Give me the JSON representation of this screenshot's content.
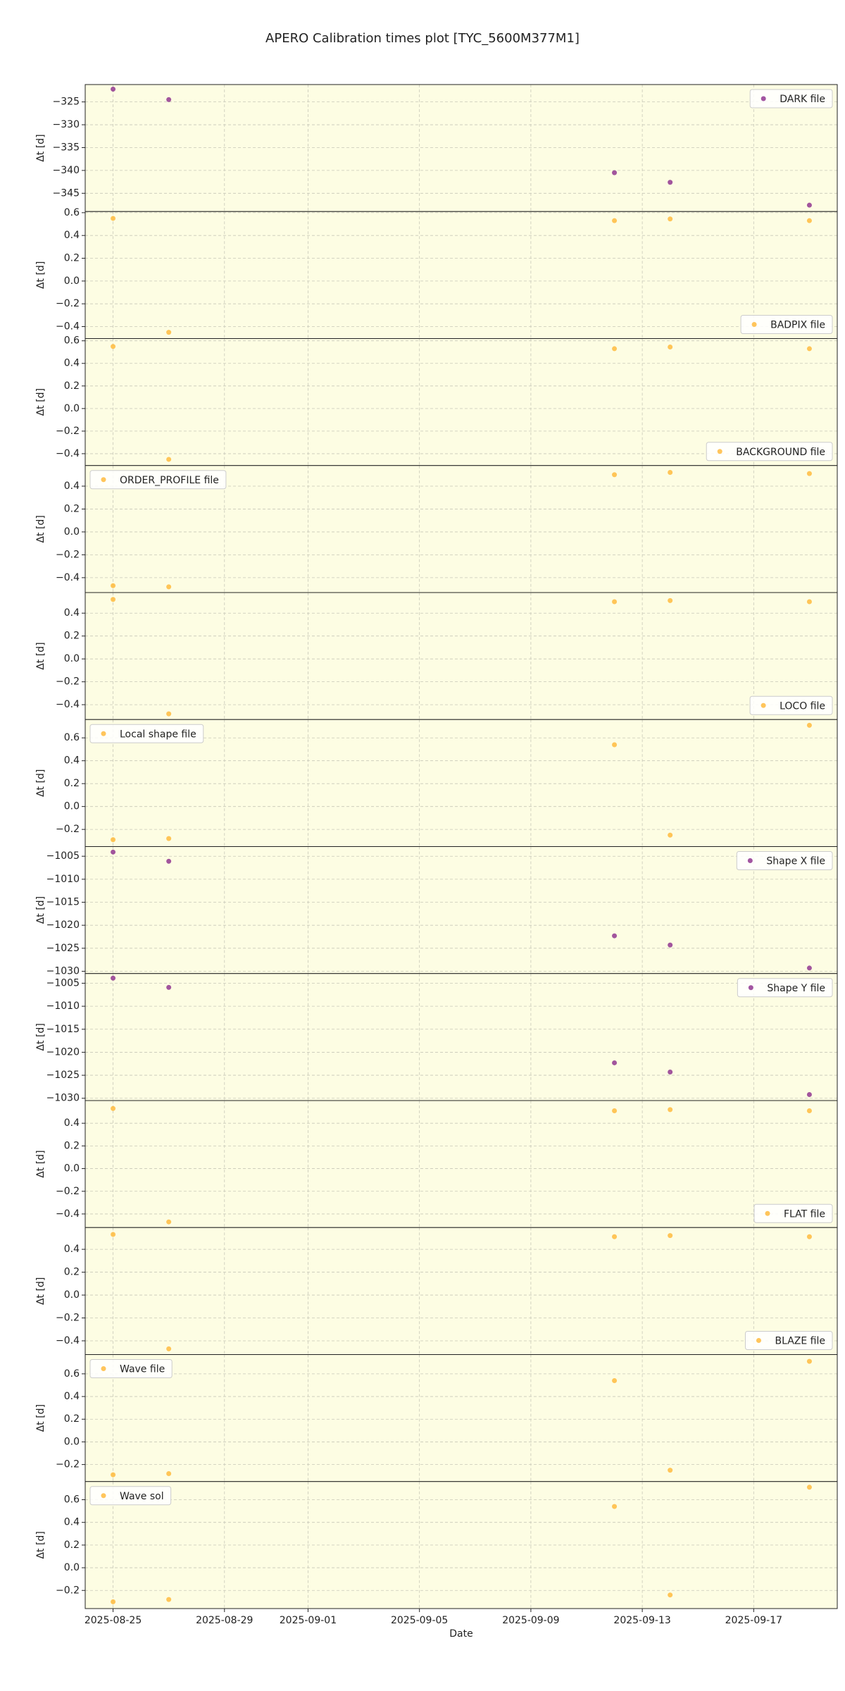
{
  "title": "APERO Calibration times plot [TYC_5600M377M1]",
  "x_axis": {
    "label": "Date",
    "xlim": [
      "2025-08-24",
      "2025-09-20"
    ],
    "xticks": [
      "2025-08-25",
      "2025-08-29",
      "2025-09-01",
      "2025-09-05",
      "2025-09-09",
      "2025-09-13",
      "2025-09-17"
    ],
    "grid": true
  },
  "chart_data": [
    {
      "type": "scatter",
      "ylabel": "Δt [d]",
      "legend": "upper right",
      "grid": true,
      "x": [
        "2025-08-25",
        "2025-08-27",
        "2025-09-12",
        "2025-09-14",
        "2025-09-19"
      ],
      "series": [
        {
          "name": "DARK file",
          "color": "#8b2a8b",
          "values": [
            -322.2,
            -324.5,
            -340.5,
            -342.6,
            -347.6
          ]
        }
      ],
      "ylim": [
        -349,
        -321.2
      ],
      "yticks": [
        {
          "value": -345,
          "label": "−345"
        },
        {
          "value": -340,
          "label": "−340"
        },
        {
          "value": -335,
          "label": "−335"
        },
        {
          "value": -330,
          "label": "−330"
        },
        {
          "value": -325,
          "label": "−325"
        }
      ]
    },
    {
      "type": "scatter",
      "ylabel": "Δt [d]",
      "legend": "lower right",
      "grid": true,
      "x": [
        "2025-08-25",
        "2025-08-27",
        "2025-09-12",
        "2025-09-14",
        "2025-09-19"
      ],
      "series": [
        {
          "name": "BADPIX file",
          "color": "#ffb733",
          "values": [
            0.55,
            -0.45,
            0.53,
            0.545,
            0.53
          ]
        }
      ],
      "ylim": [
        -0.505,
        0.61
      ],
      "yticks": [
        {
          "value": -0.4,
          "label": "−0.4"
        },
        {
          "value": -0.2,
          "label": "−0.2"
        },
        {
          "value": 0,
          "label": "0.0"
        },
        0.2,
        0.4,
        0.6
      ]
    },
    {
      "type": "scatter",
      "ylabel": "Δt [d]",
      "legend": "lower right",
      "grid": true,
      "x": [
        "2025-08-25",
        "2025-08-27",
        "2025-09-12",
        "2025-09-14",
        "2025-09-19"
      ],
      "series": [
        {
          "name": "BACKGROUND file",
          "color": "#ffb733",
          "values": [
            0.55,
            -0.45,
            0.53,
            0.545,
            0.53
          ]
        }
      ],
      "ylim": [
        -0.505,
        0.62
      ],
      "yticks": [
        {
          "value": -0.4,
          "label": "−0.4"
        },
        {
          "value": -0.2,
          "label": "−0.2"
        },
        {
          "value": 0,
          "label": "0.0"
        },
        0.2,
        0.4,
        0.6
      ]
    },
    {
      "type": "scatter",
      "ylabel": "Δt [d]",
      "legend": "upper left",
      "grid": true,
      "x": [
        "2025-08-25",
        "2025-08-27",
        "2025-09-12",
        "2025-09-14",
        "2025-09-19"
      ],
      "series": [
        {
          "name": "ORDER_PROFILE file",
          "color": "#ffb733",
          "values": [
            -0.47,
            -0.48,
            0.5,
            0.52,
            0.51
          ]
        }
      ],
      "ylim": [
        -0.53,
        0.58
      ],
      "yticks": [
        {
          "value": -0.4,
          "label": "−0.4"
        },
        {
          "value": -0.2,
          "label": "−0.2"
        },
        {
          "value": 0,
          "label": "0.0"
        },
        0.2,
        0.4
      ]
    },
    {
      "type": "scatter",
      "ylabel": "Δt [d]",
      "legend": "lower right",
      "grid": true,
      "x": [
        "2025-08-25",
        "2025-08-27",
        "2025-09-12",
        "2025-09-14",
        "2025-09-19"
      ],
      "series": [
        {
          "name": "LOCO file",
          "color": "#ffb733",
          "values": [
            0.52,
            -0.48,
            0.5,
            0.51,
            0.5
          ]
        }
      ],
      "ylim": [
        -0.53,
        0.58
      ],
      "yticks": [
        {
          "value": -0.4,
          "label": "−0.4"
        },
        {
          "value": -0.2,
          "label": "−0.2"
        },
        {
          "value": 0,
          "label": "0.0"
        },
        0.2,
        0.4
      ]
    },
    {
      "type": "scatter",
      "ylabel": "Δt [d]",
      "legend": "upper left",
      "grid": true,
      "x": [
        "2025-08-25",
        "2025-08-27",
        "2025-09-12",
        "2025-09-14",
        "2025-09-19"
      ],
      "series": [
        {
          "name": "Local shape file",
          "color": "#ffb733",
          "values": [
            -0.29,
            -0.28,
            0.54,
            -0.25,
            0.71
          ]
        }
      ],
      "ylim": [
        -0.35,
        0.76
      ],
      "yticks": [
        {
          "value": -0.2,
          "label": "−0.2"
        },
        {
          "value": 0,
          "label": "0.0"
        },
        0.2,
        0.4,
        0.6
      ]
    },
    {
      "type": "scatter",
      "ylabel": "Δt [d]",
      "legend": "upper right",
      "grid": true,
      "x": [
        "2025-08-25",
        "2025-08-27",
        "2025-09-12",
        "2025-09-14",
        "2025-09-19"
      ],
      "series": [
        {
          "name": "Shape X file",
          "color": "#8b2a8b",
          "values": [
            -1004.1,
            -1006.1,
            -1022.3,
            -1024.3,
            -1029.3
          ]
        }
      ],
      "ylim": [
        -1030.5,
        -1002.9
      ],
      "yticks": [
        {
          "value": -1030,
          "label": "−1030"
        },
        {
          "value": -1025,
          "label": "−1025"
        },
        {
          "value": -1020,
          "label": "−1020"
        },
        {
          "value": -1015,
          "label": "−1015"
        },
        {
          "value": -1010,
          "label": "−1010"
        },
        {
          "value": -1005,
          "label": "−1005"
        }
      ]
    },
    {
      "type": "scatter",
      "ylabel": "Δt [d]",
      "legend": "upper right",
      "grid": true,
      "x": [
        "2025-08-25",
        "2025-08-27",
        "2025-09-12",
        "2025-09-14",
        "2025-09-19"
      ],
      "series": [
        {
          "name": "Shape Y file",
          "color": "#8b2a8b",
          "values": [
            -1003.9,
            -1005.9,
            -1022.3,
            -1024.3,
            -1029.2
          ]
        }
      ],
      "ylim": [
        -1030.5,
        -1002.9
      ],
      "yticks": [
        {
          "value": -1030,
          "label": "−1030"
        },
        {
          "value": -1025,
          "label": "−1025"
        },
        {
          "value": -1020,
          "label": "−1020"
        },
        {
          "value": -1015,
          "label": "−1015"
        },
        {
          "value": -1010,
          "label": "−1010"
        },
        {
          "value": -1005,
          "label": "−1005"
        }
      ]
    },
    {
      "type": "scatter",
      "ylabel": "Δt [d]",
      "legend": "lower right",
      "grid": true,
      "x": [
        "2025-08-25",
        "2025-08-27",
        "2025-09-12",
        "2025-09-14",
        "2025-09-19"
      ],
      "series": [
        {
          "name": "FLAT file",
          "color": "#ffb733",
          "values": [
            0.53,
            -0.47,
            0.51,
            0.52,
            0.51
          ]
        }
      ],
      "ylim": [
        -0.52,
        0.6
      ],
      "yticks": [
        {
          "value": -0.4,
          "label": "−0.4"
        },
        {
          "value": -0.2,
          "label": "−0.2"
        },
        {
          "value": 0,
          "label": "0.0"
        },
        0.2,
        0.4
      ]
    },
    {
      "type": "scatter",
      "ylabel": "Δt [d]",
      "legend": "lower right",
      "grid": true,
      "x": [
        "2025-08-25",
        "2025-08-27",
        "2025-09-12",
        "2025-09-14",
        "2025-09-19"
      ],
      "series": [
        {
          "name": "BLAZE file",
          "color": "#ffb733",
          "values": [
            0.53,
            -0.47,
            0.51,
            0.52,
            0.51
          ]
        }
      ],
      "ylim": [
        -0.52,
        0.59
      ],
      "yticks": [
        {
          "value": -0.4,
          "label": "−0.4"
        },
        {
          "value": -0.2,
          "label": "−0.2"
        },
        {
          "value": 0,
          "label": "0.0"
        },
        0.2,
        0.4
      ]
    },
    {
      "type": "scatter",
      "ylabel": "Δt [d]",
      "legend": "upper left",
      "grid": true,
      "x": [
        "2025-08-25",
        "2025-08-27",
        "2025-09-12",
        "2025-09-14",
        "2025-09-19"
      ],
      "series": [
        {
          "name": "Wave file",
          "color": "#ffb733",
          "values": [
            -0.29,
            -0.28,
            0.54,
            -0.25,
            0.71
          ]
        }
      ],
      "ylim": [
        -0.35,
        0.77
      ],
      "yticks": [
        {
          "value": -0.2,
          "label": "−0.2"
        },
        {
          "value": 0,
          "label": "0.0"
        },
        0.2,
        0.4,
        0.6
      ]
    },
    {
      "type": "scatter",
      "ylabel": "Δt [d]",
      "legend": "upper left",
      "grid": true,
      "x": [
        "2025-08-25",
        "2025-08-27",
        "2025-09-12",
        "2025-09-14",
        "2025-09-19"
      ],
      "series": [
        {
          "name": "Wave sol",
          "color": "#ffb733",
          "values": [
            -0.3,
            -0.28,
            0.54,
            -0.24,
            0.71
          ]
        }
      ],
      "ylim": [
        -0.36,
        0.76
      ],
      "yticks": [
        {
          "value": -0.2,
          "label": "−0.2"
        },
        {
          "value": 0,
          "label": "0.0"
        },
        0.2,
        0.4,
        0.6
      ]
    }
  ]
}
